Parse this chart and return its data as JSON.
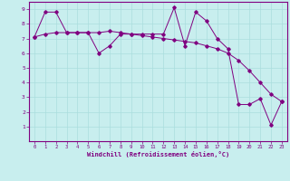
{
  "xlabel": "Windchill (Refroidissement éolien,°C)",
  "x_values": [
    0,
    1,
    2,
    3,
    4,
    5,
    6,
    7,
    8,
    9,
    10,
    11,
    12,
    13,
    14,
    15,
    16,
    17,
    18,
    19,
    20,
    21,
    22,
    23
  ],
  "line1_y": [
    7.1,
    8.8,
    8.8,
    7.4,
    7.4,
    7.4,
    6.0,
    6.5,
    7.3,
    7.3,
    7.3,
    7.3,
    7.3,
    9.1,
    6.5,
    8.8,
    8.2,
    7.0,
    6.3,
    2.5,
    2.5,
    2.9,
    1.1,
    2.7
  ],
  "line2_y": [
    7.1,
    7.3,
    7.4,
    7.4,
    7.4,
    7.4,
    7.4,
    7.5,
    7.4,
    7.3,
    7.2,
    7.1,
    7.0,
    6.9,
    6.8,
    6.7,
    6.5,
    6.3,
    6.0,
    5.5,
    4.8,
    4.0,
    3.2,
    2.7
  ],
  "line_color": "#800080",
  "bg_color": "#c8eeee",
  "grid_color": "#aadddd",
  "ylim": [
    0,
    9.5
  ],
  "xlim": [
    -0.5,
    23.5
  ],
  "yticks": [
    1,
    2,
    3,
    4,
    5,
    6,
    7,
    8,
    9
  ],
  "xticks": [
    0,
    1,
    2,
    3,
    4,
    5,
    6,
    7,
    8,
    9,
    10,
    11,
    12,
    13,
    14,
    15,
    16,
    17,
    18,
    19,
    20,
    21,
    22,
    23
  ]
}
